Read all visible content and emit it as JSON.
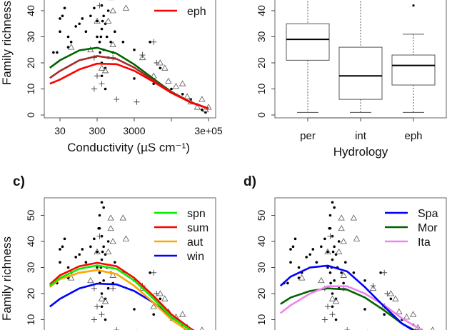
{
  "chart_data": [
    {
      "panel": "a",
      "type": "scatter",
      "xlabel": "Conductivity (µS cm⁻¹)",
      "ylabel": "Family richness",
      "x_scale": "log",
      "x_ticks": [
        30,
        300,
        3000,
        30000,
        300000
      ],
      "x_tick_labels": [
        "30",
        "300",
        "3000",
        "",
        "3e+05"
      ],
      "y_ticks": [
        0,
        10,
        20,
        30,
        40
      ],
      "legend": {
        "placement": "top-right",
        "entries": [
          {
            "label": "eph",
            "color": "#ff0000"
          }
        ]
      },
      "curves": [
        {
          "color": "#006400",
          "x": [
            16,
            30,
            100,
            300,
            1000,
            3000,
            10000,
            30000,
            100000,
            300000
          ],
          "y": [
            18.1,
            21.0,
            24.8,
            25.8,
            23.6,
            19.4,
            13.8,
            8.9,
            4.9,
            2.5
          ]
        },
        {
          "color": "#a52a2a",
          "x": [
            16,
            30,
            100,
            300,
            1000,
            3000,
            10000,
            30000,
            100000,
            300000
          ],
          "y": [
            14.2,
            16.9,
            21.0,
            22.6,
            21.5,
            18.2,
            13.2,
            8.7,
            4.9,
            2.5
          ]
        },
        {
          "name": "eph",
          "color": "#ff0000",
          "x": [
            16,
            30,
            100,
            300,
            1000,
            3000,
            10000,
            30000,
            100000,
            300000
          ],
          "y": [
            12,
            13.6,
            17.5,
            19.7,
            19.5,
            17.0,
            12.7,
            8.5,
            4.8,
            2.5
          ]
        }
      ]
    },
    {
      "panel": "b",
      "type": "box",
      "xlabel": "Hydrology",
      "categories": [
        "per",
        "int",
        "eph"
      ],
      "y_ticks": [
        0,
        10,
        20,
        30,
        40
      ],
      "boxes": [
        {
          "min": 1,
          "q1": 21,
          "median": 29,
          "q3": 35,
          "max": 48,
          "outliers": []
        },
        {
          "min": 1,
          "q1": 6,
          "median": 15,
          "q3": 26,
          "max": 48,
          "outliers": []
        },
        {
          "min": 1,
          "q1": 11.5,
          "median": 19,
          "q3": 23,
          "max": 31,
          "outliers": [
            42
          ]
        }
      ]
    },
    {
      "panel": "c",
      "panel_label": "c)",
      "type": "scatter",
      "ylabel": "Family richness",
      "x_scale": "log",
      "y_ticks": [
        10,
        20,
        30,
        40,
        50
      ],
      "legend": {
        "placement": "top-right",
        "entries": [
          {
            "label": "spn",
            "color": "#00ee00"
          },
          {
            "label": "sum",
            "color": "#ff0000"
          },
          {
            "label": "aut",
            "color": "#ffa500"
          },
          {
            "label": "win",
            "color": "#0000ff"
          }
        ]
      },
      "curves": [
        {
          "name": "win",
          "color": "#0000ff",
          "x": [
            16,
            30,
            100,
            300,
            1000,
            3000,
            10000,
            30000,
            100000,
            300000
          ],
          "y": [
            15,
            18,
            22,
            23.8,
            23.5,
            21,
            16.5,
            11,
            6,
            2.5
          ]
        },
        {
          "name": "aut",
          "color": "#ffa500",
          "x": [
            16,
            30,
            100,
            300,
            1000,
            3000,
            10000,
            30000,
            100000,
            300000
          ],
          "y": [
            22.5,
            25.5,
            28,
            29,
            27.5,
            23,
            16.5,
            10,
            5,
            2
          ]
        },
        {
          "name": "sum",
          "color": "#ff0000",
          "x": [
            16,
            30,
            100,
            300,
            1000,
            3000,
            10000,
            30000,
            100000,
            300000
          ],
          "y": [
            23.5,
            27,
            30.5,
            31.8,
            30.5,
            26,
            19,
            12,
            6.5,
            2.5
          ]
        },
        {
          "name": "spn",
          "color": "#00ee00",
          "x": [
            16,
            30,
            100,
            300,
            1000,
            3000,
            10000,
            30000,
            100000,
            300000
          ],
          "y": [
            23,
            26,
            29.5,
            30.8,
            29.5,
            25,
            18,
            11,
            6,
            2.5
          ]
        }
      ]
    },
    {
      "panel": "d",
      "panel_label": "d)",
      "type": "scatter",
      "x_scale": "log",
      "y_ticks": [
        10,
        20,
        30,
        40,
        50
      ],
      "legend": {
        "placement": "top-right",
        "entries": [
          {
            "label": "Spa",
            "color": "#0000ff"
          },
          {
            "label": "Mor",
            "color": "#006400"
          },
          {
            "label": "Ita",
            "color": "#ee82ee"
          }
        ]
      },
      "curves": [
        {
          "name": "Mor",
          "color": "#006400",
          "x": [
            16,
            30,
            100,
            300,
            1000,
            3000,
            10000,
            30000,
            100000,
            300000
          ],
          "y": [
            16,
            18.5,
            21,
            22,
            21.5,
            18.5,
            13.5,
            8.5,
            4.5,
            2
          ]
        },
        {
          "name": "Ita",
          "color": "#ee82ee",
          "x": [
            16,
            30,
            100,
            300,
            1000,
            3000,
            10000,
            30000,
            100000,
            300000
          ],
          "y": [
            12.5,
            15.5,
            20,
            22.8,
            22.8,
            20,
            15.5,
            10.5,
            6,
            2.5
          ]
        },
        {
          "name": "Spa",
          "color": "#0000ff",
          "x": [
            16,
            30,
            100,
            300,
            1000,
            3000,
            10000,
            30000,
            100000,
            300000
          ],
          "y": [
            23,
            26.5,
            30,
            30.7,
            28.5,
            22.5,
            15,
            8.5,
            4,
            1.5
          ]
        }
      ]
    }
  ],
  "observations": {
    "per": [
      [
        20,
        24
      ],
      [
        25,
        24
      ],
      [
        30,
        32
      ],
      [
        30,
        37
      ],
      [
        35,
        38
      ],
      [
        40,
        41
      ],
      [
        50,
        30
      ],
      [
        50,
        26
      ],
      [
        60,
        28
      ],
      [
        80,
        34
      ],
      [
        100,
        35
      ],
      [
        120,
        37
      ],
      [
        150,
        32
      ],
      [
        200,
        38
      ],
      [
        250,
        41
      ],
      [
        300,
        36
      ],
      [
        300,
        30
      ],
      [
        350,
        45
      ],
      [
        350,
        28
      ],
      [
        400,
        42
      ],
      [
        400,
        33
      ],
      [
        400,
        20
      ],
      [
        450,
        38
      ],
      [
        450,
        25
      ],
      [
        500,
        35
      ],
      [
        500,
        18
      ],
      [
        550,
        30
      ],
      [
        600,
        22
      ],
      [
        600,
        40
      ],
      [
        700,
        28
      ],
      [
        800,
        24
      ],
      [
        900,
        32
      ],
      [
        400,
        15
      ],
      [
        500,
        10
      ],
      [
        1500,
        28
      ],
      [
        3000,
        25
      ],
      [
        3000,
        14
      ],
      [
        8000,
        28
      ],
      [
        10000,
        12
      ],
      [
        15000,
        18
      ],
      [
        30000,
        10
      ],
      [
        60000,
        8
      ],
      [
        100000,
        6
      ],
      [
        150000,
        4
      ],
      [
        200000,
        2
      ],
      [
        250000,
        1
      ],
      [
        400,
        55
      ],
      [
        450,
        53
      ],
      [
        350,
        50
      ],
      [
        330,
        45
      ],
      [
        420,
        36
      ],
      [
        380,
        30
      ],
      [
        360,
        24
      ]
    ],
    "eph": [
      [
        700,
        49
      ],
      [
        1500,
        49
      ],
      [
        1800,
        41
      ],
      [
        700,
        45
      ],
      [
        800,
        40
      ],
      [
        600,
        36
      ],
      [
        300,
        36
      ],
      [
        200,
        25
      ],
      [
        60,
        26
      ],
      [
        800,
        27
      ],
      [
        5000,
        22
      ],
      [
        10000,
        15
      ],
      [
        15000,
        20
      ],
      [
        20000,
        18
      ],
      [
        25000,
        13
      ],
      [
        40000,
        11
      ],
      [
        60000,
        12
      ],
      [
        80000,
        7
      ],
      [
        100000,
        5
      ],
      [
        150000,
        3
      ],
      [
        200000,
        6
      ],
      [
        250000,
        2
      ],
      [
        300000,
        3
      ],
      [
        400,
        18
      ],
      [
        500,
        17
      ]
    ],
    "int": [
      [
        250,
        10
      ],
      [
        350,
        42
      ],
      [
        250,
        22
      ],
      [
        400,
        12
      ],
      [
        1000,
        6
      ],
      [
        3500,
        5
      ],
      [
        5000,
        23
      ],
      [
        10000,
        28
      ],
      [
        800,
        22
      ],
      [
        300,
        15
      ],
      [
        12000,
        20
      ]
    ]
  }
}
